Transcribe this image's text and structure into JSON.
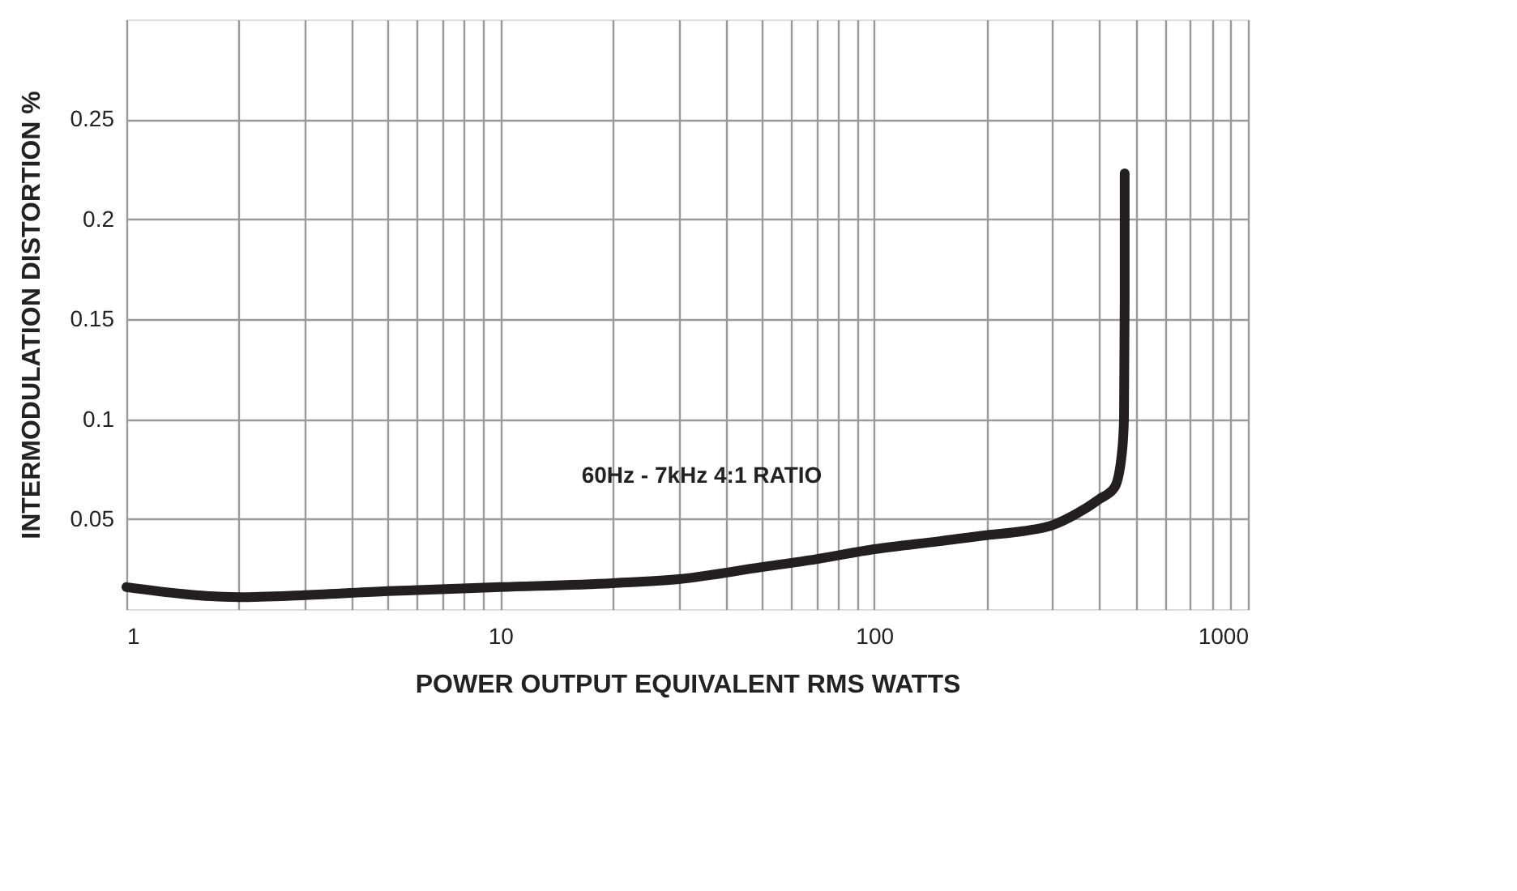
{
  "chart_data": {
    "type": "line",
    "xlabel": "POWER OUTPUT EQUIVALENT RMS WATTS",
    "ylabel": "INTERMODULATION DISTORTION %",
    "annotations": [
      "60Hz - 7kHz  4:1 RATIO"
    ],
    "log": "x",
    "grid": true,
    "marker": "none",
    "line_style": "solid",
    "xlim": [
      1,
      1000
    ],
    "ylim": [
      0.005,
      0.3
    ],
    "xticks": [
      1,
      {
        "value": 2,
        "label": null
      },
      {
        "value": 3,
        "label": null
      },
      {
        "value": 4,
        "label": null
      },
      {
        "value": 5,
        "label": null
      },
      {
        "value": 6,
        "label": null
      },
      {
        "value": 7,
        "label": null
      },
      {
        "value": 8,
        "label": null
      },
      {
        "value": 9,
        "label": null
      },
      10,
      {
        "value": 20,
        "label": null
      },
      {
        "value": 30,
        "label": null
      },
      {
        "value": 40,
        "label": null
      },
      {
        "value": 50,
        "label": null
      },
      {
        "value": 60,
        "label": null
      },
      {
        "value": 70,
        "label": null
      },
      {
        "value": 80,
        "label": null
      },
      {
        "value": 90,
        "label": null
      },
      100,
      {
        "value": 200,
        "label": null
      },
      {
        "value": 300,
        "label": null
      },
      {
        "value": 400,
        "label": null
      },
      {
        "value": 500,
        "label": null
      },
      {
        "value": 600,
        "label": null
      },
      {
        "value": 700,
        "label": null
      },
      {
        "value": 800,
        "label": null
      },
      {
        "value": 900,
        "label": null
      },
      1000
    ],
    "yticks": [
      0.05,
      0.1,
      0.15,
      0.2,
      0.25
    ],
    "series": [
      {
        "color": "#231f20",
        "x": [
          1,
          2,
          3,
          5,
          10,
          20,
          30,
          50,
          70,
          100,
          150,
          200,
          250,
          300,
          350,
          400,
          440,
          460,
          466,
          468,
          468
        ],
        "values": [
          0.016,
          0.011,
          0.012,
          0.014,
          0.016,
          0.018,
          0.02,
          0.026,
          0.03,
          0.035,
          0.039,
          0.042,
          0.044,
          0.047,
          0.053,
          0.06,
          0.066,
          0.083,
          0.1,
          0.16,
          0.223
        ]
      }
    ]
  }
}
